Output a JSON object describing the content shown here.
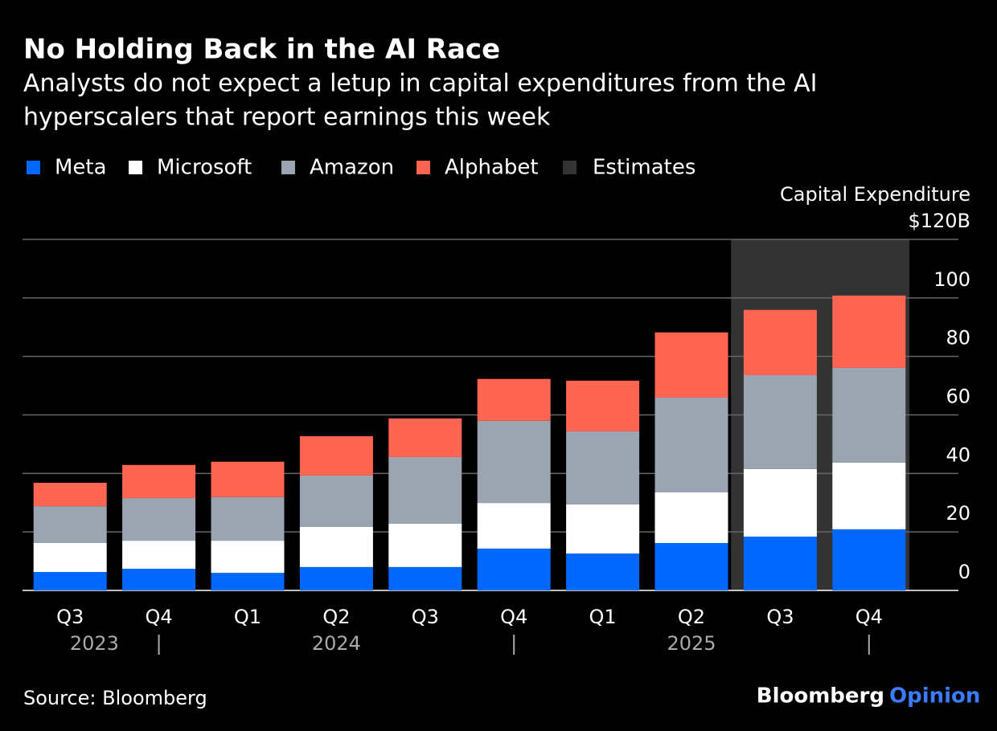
{
  "chart_data": {
    "type": "stacked_bar",
    "title": "No Holding Back in the AI Race",
    "subtitle": [
      "Analysts do not expect a letup in capital expenditures from the AI",
      "hyperscalers that report earnings this week"
    ],
    "y_axis_label": "Capital Expenditure",
    "categories": [
      "Q3",
      "Q4",
      "Q1",
      "Q2",
      "Q3",
      "Q4",
      "Q1",
      "Q2",
      "Q3",
      "Q4"
    ],
    "years": [
      "2023",
      "2024",
      "2025"
    ],
    "series": [
      {
        "name": "Meta",
        "color": "#0068ff",
        "values": [
          6.3,
          7.4,
          6.0,
          8.0,
          8.0,
          14.3,
          12.6,
          16.2,
          18.4,
          20.9
        ]
      },
      {
        "name": "Microsoft",
        "color": "#ffffff",
        "values": [
          9.9,
          9.6,
          11.0,
          13.7,
          14.8,
          15.6,
          16.8,
          17.3,
          23.1,
          22.8
        ]
      },
      {
        "name": "Amazon",
        "color": "#9aa5b1",
        "values": [
          12.6,
          14.6,
          14.9,
          17.6,
          22.8,
          28.1,
          25.0,
          32.4,
          32.1,
          32.4
        ]
      },
      {
        "name": "Alphabet",
        "color": "#ff6550",
        "values": [
          8.0,
          11.3,
          12.1,
          13.4,
          13.2,
          14.3,
          17.3,
          22.3,
          22.3,
          24.7
        ]
      }
    ],
    "estimates": {
      "label": "Estimates",
      "color": "#333333",
      "first_index": 8
    },
    "ylim": [
      0,
      120
    ],
    "yticks": [
      0,
      20,
      40,
      60,
      80,
      100,
      {
        "value": 120,
        "label": "$120B"
      }
    ],
    "grid": true,
    "source": "Source: Bloomberg",
    "brand": [
      "Bloomberg",
      "Opinion"
    ]
  }
}
